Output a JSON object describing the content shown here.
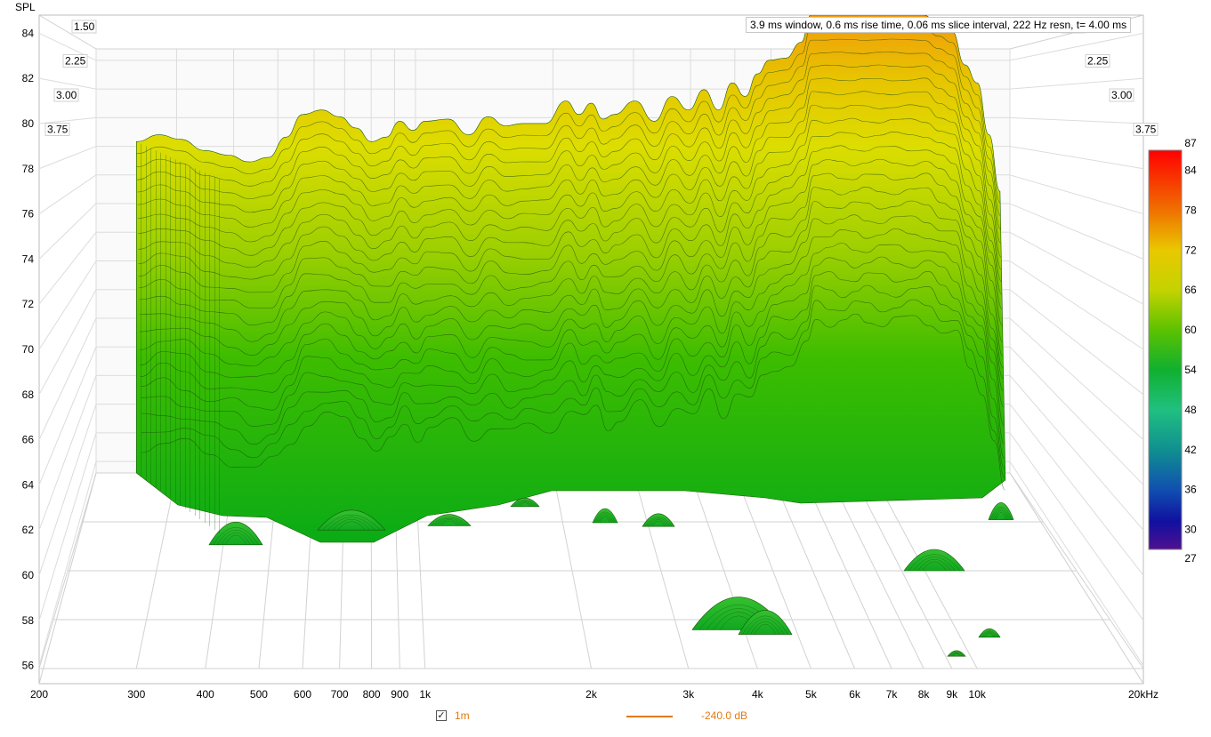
{
  "chart_data": {
    "type": "waterfall",
    "ylabel": "SPL",
    "xscale": "log",
    "xlim": [
      200,
      20000
    ],
    "ylim": [
      55.2,
      84.8
    ],
    "x_ticks": [
      {
        "value": 200,
        "label": "200"
      },
      {
        "value": 300,
        "label": "300"
      },
      {
        "value": 400,
        "label": "400"
      },
      {
        "value": 500,
        "label": "500"
      },
      {
        "value": 600,
        "label": "600"
      },
      {
        "value": 700,
        "label": "700"
      },
      {
        "value": 800,
        "label": "800"
      },
      {
        "value": 900,
        "label": "900"
      },
      {
        "value": 1000,
        "label": "1k"
      },
      {
        "value": 2000,
        "label": "2k"
      },
      {
        "value": 3000,
        "label": "3k"
      },
      {
        "value": 4000,
        "label": "4k"
      },
      {
        "value": 5000,
        "label": "5k"
      },
      {
        "value": 6000,
        "label": "6k"
      },
      {
        "value": 7000,
        "label": "7k"
      },
      {
        "value": 8000,
        "label": "8k"
      },
      {
        "value": 9000,
        "label": "9k"
      },
      {
        "value": 10000,
        "label": "10k"
      },
      {
        "value": 20000,
        "label": "20kHz"
      }
    ],
    "y_ticks": [
      56,
      58,
      60,
      62,
      64,
      66,
      68,
      70,
      72,
      74,
      76,
      78,
      80,
      82,
      84
    ],
    "time_ticks": [
      "1.50",
      "2.25",
      "3.00",
      "3.75"
    ],
    "info": "3.9 ms window, 0.6 ms rise time, 0.06 ms slice interval, 222 Hz resn, t= 4.00 ms",
    "colorbar": {
      "min": 27,
      "max": 87,
      "ticks": [
        87,
        84,
        78,
        72,
        66,
        60,
        54,
        48,
        42,
        36,
        30,
        27
      ]
    },
    "front_slice": {
      "freq": [
        300,
        330,
        360,
        400,
        440,
        480,
        520,
        560,
        600,
        650,
        700,
        750,
        800,
        850,
        900,
        950,
        1000,
        1100,
        1200,
        1300,
        1400,
        1500,
        1650,
        1800,
        1900,
        2000,
        2100,
        2200,
        2400,
        2600,
        2800,
        3000,
        3200,
        3400,
        3600,
        3800,
        4000,
        4200,
        4500,
        4800,
        5000,
        5300,
        5600,
        5900,
        6200,
        6600,
        7000,
        7500,
        8000,
        8500,
        9000,
        9500,
        10000,
        10500,
        11000
      ],
      "spl": [
        79.2,
        79.5,
        79.3,
        78.8,
        78.6,
        78.3,
        78.5,
        79.4,
        80.4,
        80.6,
        80.3,
        79.8,
        79.2,
        79.4,
        80.1,
        79.7,
        80.1,
        80.2,
        79.5,
        80.3,
        79.9,
        80.0,
        80.0,
        81.0,
        80.4,
        80.9,
        80.2,
        80.4,
        81.0,
        80.1,
        81.2,
        80.6,
        81.5,
        80.6,
        81.8,
        81.2,
        82.2,
        82.8,
        82.9,
        83.6,
        84.8,
        84.8,
        84.8,
        84.8,
        84.8,
        84.8,
        84.8,
        84.8,
        84.8,
        84.4,
        84.1,
        82.6,
        81.8,
        79.5,
        77.0
      ]
    }
  },
  "legend": {
    "series_name": "1m",
    "level": "-240.0 dB",
    "checked": true,
    "color": "#e07a10"
  }
}
